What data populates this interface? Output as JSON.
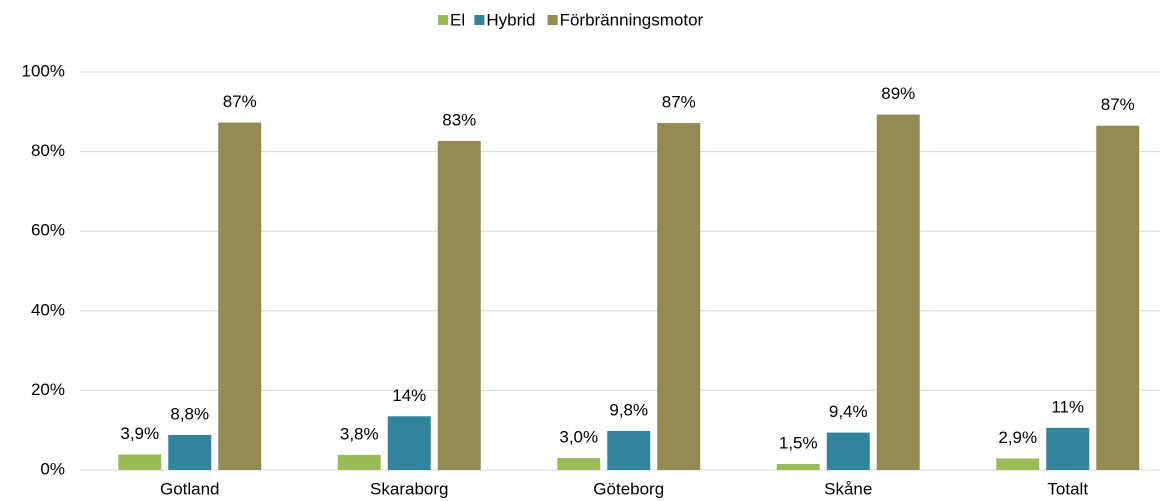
{
  "chart_data": {
    "type": "bar",
    "categories": [
      "Gotland",
      "Skaraborg",
      "Göteborg",
      "Skåne",
      "Totalt"
    ],
    "series": [
      {
        "name": "El",
        "color": "#9bbb59",
        "values": [
          3.9,
          3.8,
          3.0,
          1.5,
          2.9
        ],
        "value_labels": [
          "3,9%",
          "3,8%",
          "3,0%",
          "1,5%",
          "2,9%"
        ]
      },
      {
        "name": "Hybrid",
        "color": "#31849b",
        "values": [
          8.8,
          13.5,
          9.8,
          9.4,
          10.6
        ],
        "value_labels": [
          "8,8%",
          "14%",
          "9,8%",
          "9,4%",
          "11%"
        ]
      },
      {
        "name": "Förbränningsmotor",
        "color": "#948a54",
        "values": [
          87.3,
          82.7,
          87.2,
          89.3,
          86.5
        ],
        "value_labels": [
          "87%",
          "83%",
          "87%",
          "89%",
          "87%"
        ]
      }
    ],
    "ylim": [
      0,
      100
    ],
    "yticks": [
      {
        "value": 0,
        "label": "0%"
      },
      {
        "value": 20,
        "label": "20%"
      },
      {
        "value": 40,
        "label": "40%"
      },
      {
        "value": 60,
        "label": "60%"
      },
      {
        "value": 80,
        "label": "80%"
      },
      {
        "value": 100,
        "label": "100%"
      }
    ],
    "grid": true,
    "legend": "top"
  }
}
